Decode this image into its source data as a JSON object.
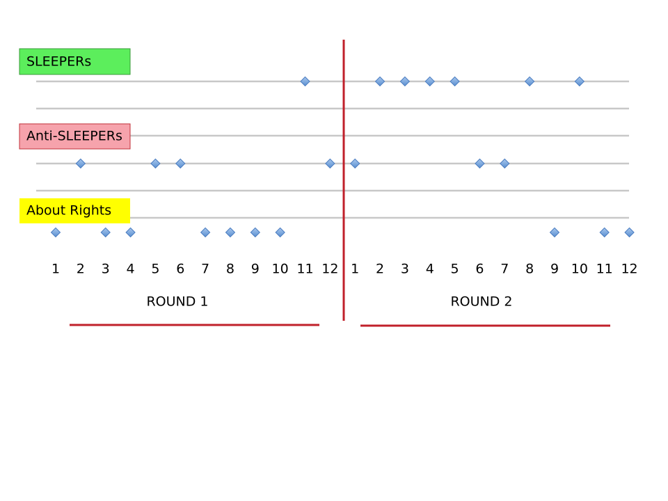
{
  "rows": [
    {
      "label": "SLEEPERs",
      "episodes": [
        [
          11
        ],
        [
          2,
          3,
          4,
          5,
          8,
          10
        ]
      ]
    },
    {
      "label": "Anti-SLEEPERs",
      "episodes": [
        [
          2,
          5,
          6,
          12
        ],
        [
          1,
          6,
          7
        ]
      ]
    },
    {
      "label": "About Rights",
      "episodes": [
        [
          1,
          3,
          4,
          7,
          8,
          9,
          10
        ],
        [
          9,
          11,
          12
        ]
      ]
    }
  ],
  "rounds": [
    {
      "label": "ROUND 1",
      "episodes": [
        1,
        2,
        3,
        4,
        5,
        6,
        7,
        8,
        9,
        10,
        11,
        12
      ]
    },
    {
      "label": "ROUND 2",
      "episodes": [
        1,
        2,
        3,
        4,
        5,
        6,
        7,
        8,
        9,
        10,
        11,
        12
      ]
    }
  ]
}
